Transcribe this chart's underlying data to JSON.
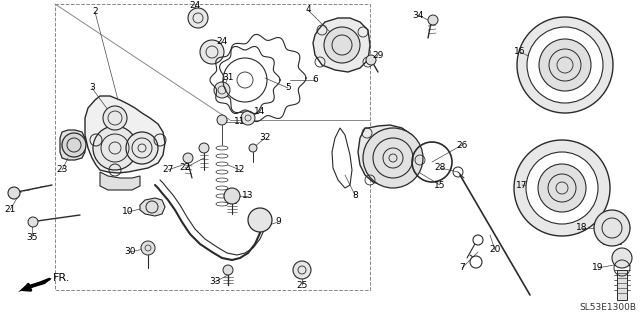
{
  "fig_width": 6.4,
  "fig_height": 3.19,
  "dpi": 100,
  "background_color": "#ffffff",
  "diagram_code": "SL53E1300B",
  "line_color": "#2a2a2a",
  "label_color": "#000000",
  "label_fontsize": 6.5
}
